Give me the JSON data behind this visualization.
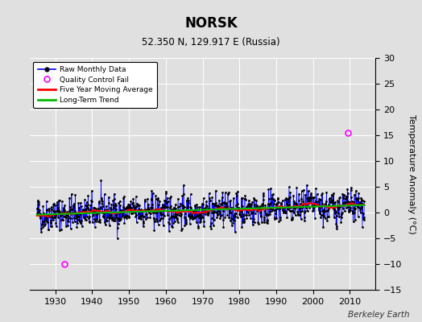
{
  "title": "NORSK",
  "subtitle": "52.350 N, 129.917 E (Russia)",
  "ylabel": "Temperature Anomaly (°C)",
  "watermark": "Berkeley Earth",
  "xlim": [
    1923,
    2017
  ],
  "ylim": [
    -15,
    30
  ],
  "yticks": [
    -15,
    -10,
    -5,
    0,
    5,
    10,
    15,
    20,
    25,
    30
  ],
  "xticks": [
    1930,
    1940,
    1950,
    1960,
    1970,
    1980,
    1990,
    2000,
    2010
  ],
  "bg_color": "#e0e0e0",
  "plot_bg_color": "#e0e0e0",
  "line_color": "#0000ff",
  "dot_color": "#000000",
  "qc_color": "#ff00ff",
  "moving_avg_color": "#ff0000",
  "trend_color": "#00bb00",
  "seed": 42,
  "n_years": 89,
  "start_year": 1925
}
